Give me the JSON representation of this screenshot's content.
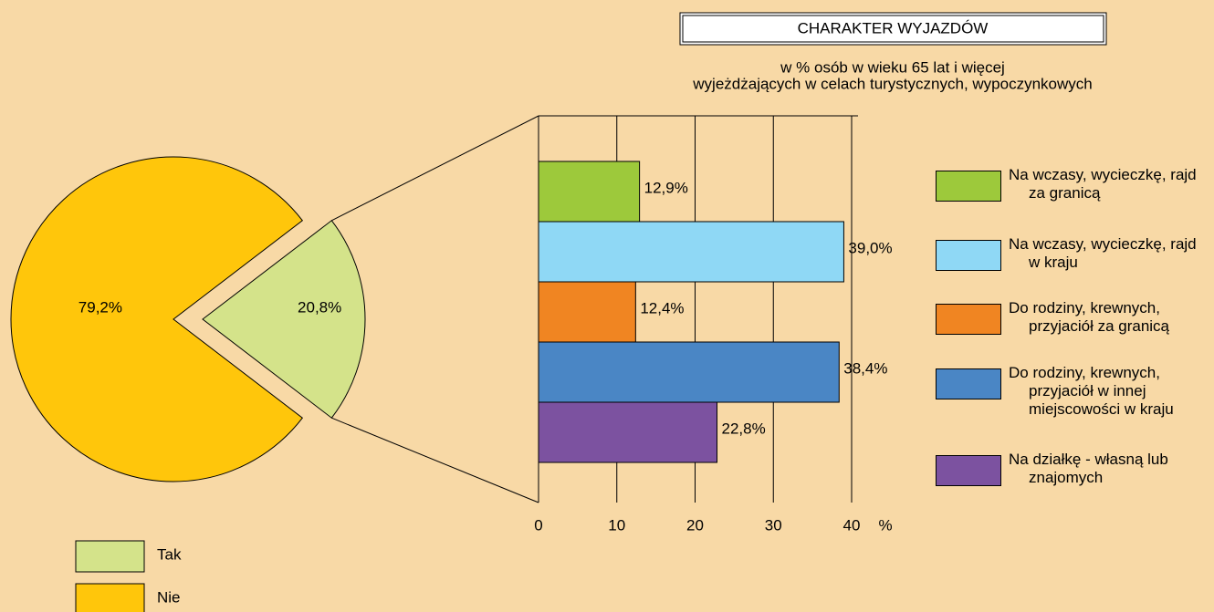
{
  "chart_data": [
    {
      "type": "pie",
      "categories": [
        "Tak",
        "Nie"
      ],
      "values": [
        20.8,
        79.2
      ],
      "value_labels": [
        "20,8%",
        "79,2%"
      ],
      "colors": [
        "#d4e38a",
        "#ffc60b"
      ]
    },
    {
      "type": "bar",
      "title": "CHARAKTER  WYJAZDÓW",
      "subtitle": [
        "w % osób w wieku 65 lat i więcej",
        "wyjeżdżających w celach turystycznych, wypoczynkowych"
      ],
      "categories": [
        "Na wczasy, wycieczkę, rajd za granicą",
        "Na wczasy, wycieczkę, rajd w kraju",
        "Do rodziny, krewnych, przyjaciół za granicą",
        "Do rodziny, krewnych, przyjaciół w innej miejscowości w kraju",
        "Na działkę - własną lub znajomych"
      ],
      "values": [
        12.9,
        39.0,
        12.4,
        38.4,
        22.8
      ],
      "value_labels": [
        "12,9%",
        "39,0%",
        "12,4%",
        "38,4%",
        "22,8%"
      ],
      "colors": [
        "#9dc93b",
        "#8fd8f5",
        "#f08522",
        "#4a86c5",
        "#7c52a0"
      ],
      "xlim": [
        0,
        40
      ],
      "xticks": [
        0,
        10,
        20,
        30,
        40
      ],
      "xlabel": "%",
      "grid": true
    }
  ]
}
